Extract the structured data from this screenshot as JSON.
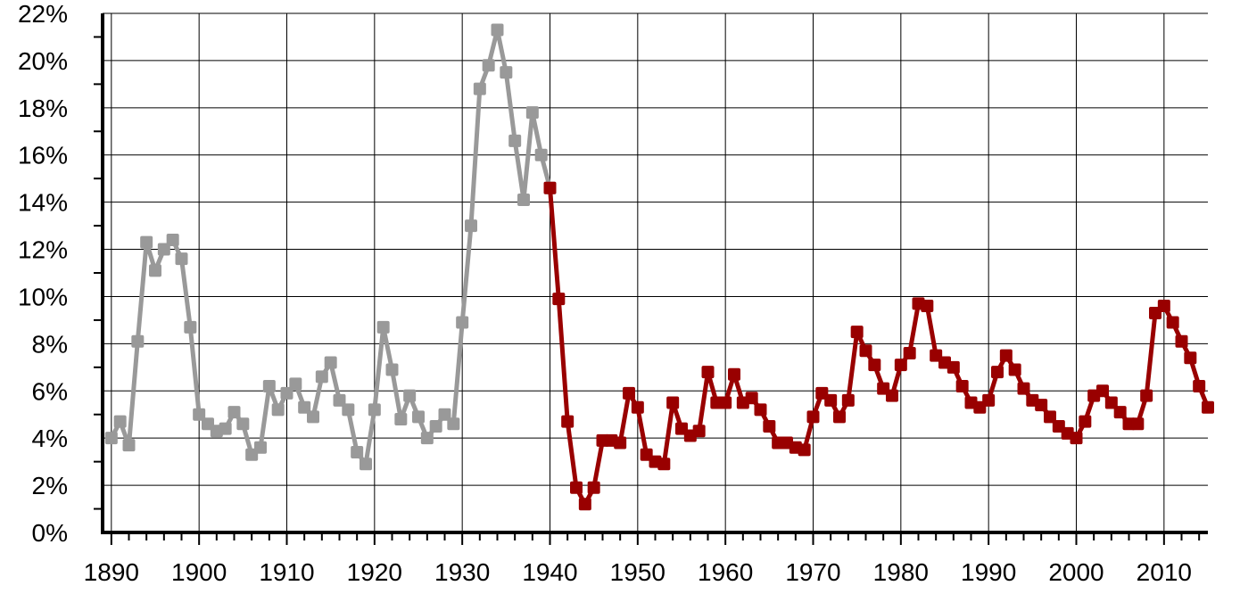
{
  "chart_data": {
    "type": "line",
    "title": "",
    "xlabel": "",
    "ylabel": "",
    "xlim": [
      1889,
      2015
    ],
    "ylim": [
      0,
      22
    ],
    "grid": true,
    "x_ticks": [
      1890,
      1900,
      1910,
      1920,
      1930,
      1940,
      1950,
      1960,
      1970,
      1980,
      1990,
      2000,
      2010
    ],
    "x_tick_labels": [
      "1890",
      "1900",
      "1910",
      "1920",
      "1930",
      "1940",
      "1950",
      "1960",
      "1970",
      "1980",
      "1990",
      "2000",
      "2010"
    ],
    "y_ticks": [
      0,
      2,
      4,
      6,
      8,
      10,
      12,
      14,
      16,
      18,
      20,
      22
    ],
    "y_tick_labels": [
      "0%",
      "2%",
      "4%",
      "6%",
      "8%",
      "10%",
      "12%",
      "14%",
      "16%",
      "18%",
      "20%",
      "22%"
    ],
    "series": [
      {
        "color": "#999999",
        "x": [
          1890,
          1891,
          1892,
          1893,
          1894,
          1895,
          1896,
          1897,
          1898,
          1899,
          1900,
          1901,
          1902,
          1903,
          1904,
          1905,
          1906,
          1907,
          1908,
          1909,
          1910,
          1911,
          1912,
          1913,
          1914,
          1915,
          1916,
          1917,
          1918,
          1919,
          1920,
          1921,
          1922,
          1923,
          1924,
          1925,
          1926,
          1927,
          1928,
          1929,
          1930,
          1931,
          1932,
          1933,
          1934,
          1935,
          1936,
          1937,
          1938,
          1939,
          1940
        ],
        "values": [
          4.0,
          4.7,
          3.7,
          8.1,
          12.3,
          11.1,
          12.0,
          12.4,
          11.6,
          8.7,
          5.0,
          4.6,
          4.3,
          4.4,
          5.1,
          4.6,
          3.3,
          3.6,
          6.2,
          5.2,
          5.9,
          6.3,
          5.3,
          4.9,
          6.6,
          7.2,
          5.6,
          5.2,
          3.4,
          2.9,
          5.2,
          8.7,
          6.9,
          4.8,
          5.8,
          4.9,
          4.0,
          4.5,
          5.0,
          4.6,
          8.9,
          13.0,
          18.8,
          19.8,
          21.3,
          19.5,
          16.6,
          14.1,
          17.8,
          16.0,
          14.6
        ]
      },
      {
        "color": "#990000",
        "x": [
          1940,
          1941,
          1942,
          1943,
          1944,
          1945,
          1946,
          1947,
          1948,
          1949,
          1950,
          1951,
          1952,
          1953,
          1954,
          1955,
          1956,
          1957,
          1958,
          1959,
          1960,
          1961,
          1962,
          1963,
          1964,
          1965,
          1966,
          1967,
          1968,
          1969,
          1970,
          1971,
          1972,
          1973,
          1974,
          1975,
          1976,
          1977,
          1978,
          1979,
          1980,
          1981,
          1982,
          1983,
          1984,
          1985,
          1986,
          1987,
          1988,
          1989,
          1990,
          1991,
          1992,
          1993,
          1994,
          1995,
          1996,
          1997,
          1998,
          1999,
          2000,
          2001,
          2002,
          2003,
          2004,
          2005,
          2006,
          2007,
          2008,
          2009,
          2010,
          2011,
          2012,
          2013,
          2014,
          2015
        ],
        "values": [
          14.6,
          9.9,
          4.7,
          1.9,
          1.2,
          1.9,
          3.9,
          3.9,
          3.8,
          5.9,
          5.3,
          3.3,
          3.0,
          2.9,
          5.5,
          4.4,
          4.1,
          4.3,
          6.8,
          5.5,
          5.5,
          6.7,
          5.5,
          5.7,
          5.2,
          4.5,
          3.8,
          3.8,
          3.6,
          3.5,
          4.9,
          5.9,
          5.6,
          4.9,
          5.6,
          8.5,
          7.7,
          7.1,
          6.1,
          5.8,
          7.1,
          7.6,
          9.7,
          9.6,
          7.5,
          7.2,
          7.0,
          6.2,
          5.5,
          5.3,
          5.6,
          6.8,
          7.5,
          6.9,
          6.1,
          5.6,
          5.4,
          4.9,
          4.5,
          4.2,
          4.0,
          4.7,
          5.8,
          6.0,
          5.5,
          5.1,
          4.6,
          4.6,
          5.8,
          9.3,
          9.6,
          8.9,
          8.1,
          7.4,
          6.2,
          5.3
        ]
      }
    ]
  }
}
